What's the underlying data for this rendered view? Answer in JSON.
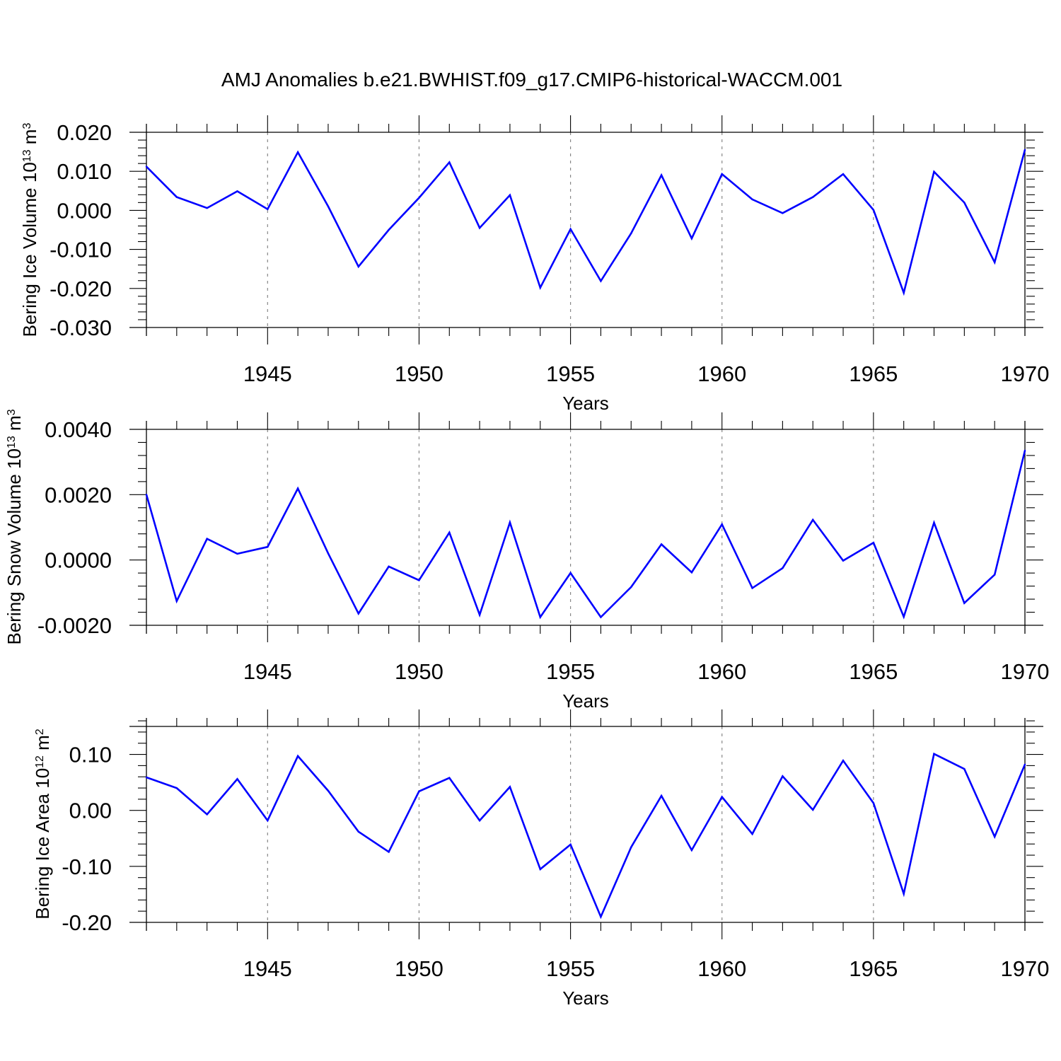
{
  "title": "AMJ Anomalies b.e21.BWHIST.f09_g17.CMIP6-historical-WACCM.001",
  "colors": {
    "line": "#0000ff",
    "axis": "#000000",
    "grid": "#888888"
  },
  "chart_data": [
    {
      "type": "line",
      "title": "AMJ Anomalies b.e21.BWHIST.f09_g17.CMIP6-historical-WACCM.001",
      "xlabel": "Years",
      "ylabel": {
        "main": "Bering Ice Volume 10",
        "exp": "13",
        "unit": " m",
        "unit_exp": "3"
      },
      "xlim": [
        1941,
        1970
      ],
      "ylim": [
        -0.03,
        0.02
      ],
      "xticks": [
        1945,
        1950,
        1955,
        1960,
        1965,
        1970
      ],
      "xtick_labels": [
        "1945",
        "1950",
        "1955",
        "1960",
        "1965",
        "1970"
      ],
      "yticks": [
        0.02,
        0.01,
        0.0,
        -0.01,
        -0.02,
        -0.03
      ],
      "ytick_labels": [
        "0.020",
        "0.010",
        "0.000",
        "-0.010",
        "-0.020",
        "-0.030"
      ],
      "x": [
        1941,
        1942,
        1943,
        1944,
        1945,
        1946,
        1947,
        1948,
        1949,
        1950,
        1951,
        1952,
        1953,
        1954,
        1955,
        1956,
        1957,
        1958,
        1959,
        1960,
        1961,
        1962,
        1963,
        1964,
        1965,
        1966,
        1967,
        1968,
        1969,
        1970
      ],
      "values": [
        0.0112,
        0.0034,
        0.0006,
        0.0049,
        0.0003,
        0.0149,
        0.001,
        -0.0144,
        -0.005,
        0.0032,
        0.0123,
        -0.0045,
        0.0039,
        -0.0198,
        -0.0048,
        -0.0181,
        -0.0059,
        0.009,
        -0.0072,
        0.0093,
        0.0028,
        -0.0007,
        0.0034,
        0.0093,
        0.0001,
        -0.0211,
        0.0099,
        0.002,
        -0.0133,
        0.0155
      ]
    },
    {
      "type": "line",
      "xlabel": "Years",
      "ylabel": {
        "main": "Bering Snow Volume 10",
        "exp": "13",
        "unit": " m",
        "unit_exp": "3"
      },
      "xlim": [
        1941,
        1970
      ],
      "ylim": [
        -0.002,
        0.004
      ],
      "xticks": [
        1945,
        1950,
        1955,
        1960,
        1965,
        1970
      ],
      "xtick_labels": [
        "1945",
        "1950",
        "1955",
        "1960",
        "1965",
        "1970"
      ],
      "yticks": [
        0.004,
        0.002,
        0.0,
        -0.002
      ],
      "ytick_labels": [
        "0.0040",
        "0.0020",
        "0.0000",
        "-0.0020"
      ],
      "x": [
        1941,
        1942,
        1943,
        1944,
        1945,
        1946,
        1947,
        1948,
        1949,
        1950,
        1951,
        1952,
        1953,
        1954,
        1955,
        1956,
        1957,
        1958,
        1959,
        1960,
        1961,
        1962,
        1963,
        1964,
        1965,
        1966,
        1967,
        1968,
        1969,
        1970
      ],
      "values": [
        0.002,
        -0.00126,
        0.00065,
        0.00019,
        0.0004,
        0.00219,
        0.0002,
        -0.00164,
        -0.0002,
        -0.00062,
        0.00084,
        -0.00168,
        0.00115,
        -0.00175,
        -0.0004,
        -0.00175,
        -0.00083,
        0.00048,
        -0.00038,
        0.00109,
        -0.00086,
        -0.00025,
        0.00123,
        -2e-05,
        0.00053,
        -0.00174,
        0.00114,
        -0.00132,
        -0.00045,
        0.00335
      ]
    },
    {
      "type": "line",
      "xlabel": "Years",
      "ylabel": {
        "main": "Bering Ice Area 10",
        "exp": "12",
        "unit": " m",
        "unit_exp": "2"
      },
      "xlim": [
        1941,
        1970
      ],
      "ylim": [
        -0.2,
        0.15
      ],
      "xticks": [
        1945,
        1950,
        1955,
        1960,
        1965,
        1970
      ],
      "xtick_labels": [
        "1945",
        "1950",
        "1955",
        "1960",
        "1965",
        "1970"
      ],
      "yticks": [
        0.1,
        0.0,
        -0.1,
        -0.2
      ],
      "ytick_labels": [
        "0.10",
        "0.00",
        "-0.10",
        "-0.20"
      ],
      "x": [
        1941,
        1942,
        1943,
        1944,
        1945,
        1946,
        1947,
        1948,
        1949,
        1950,
        1951,
        1952,
        1953,
        1954,
        1955,
        1956,
        1957,
        1958,
        1959,
        1960,
        1961,
        1962,
        1963,
        1964,
        1965,
        1966,
        1967,
        1968,
        1969,
        1970
      ],
      "values": [
        0.059,
        0.04,
        -0.007,
        0.056,
        -0.018,
        0.097,
        0.035,
        -0.038,
        -0.074,
        0.034,
        0.058,
        -0.018,
        0.042,
        -0.105,
        -0.061,
        -0.19,
        -0.066,
        0.026,
        -0.071,
        0.024,
        -0.042,
        0.061,
        0.001,
        0.089,
        0.013,
        -0.149,
        0.101,
        0.074,
        -0.047,
        0.082
      ]
    }
  ]
}
